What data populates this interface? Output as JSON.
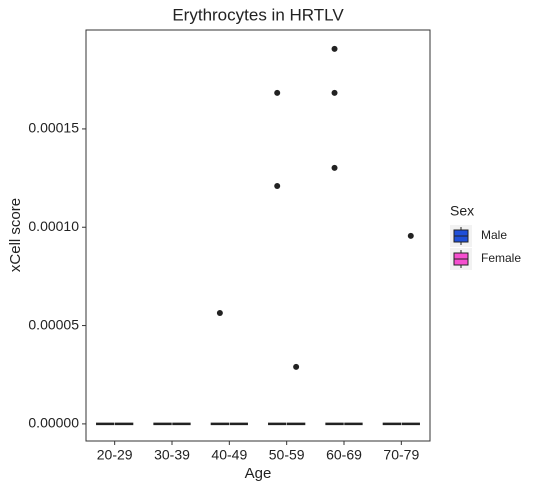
{
  "chart_data": {
    "type": "boxplot",
    "title": "Erythrocytes in HRTLV",
    "x_label": "Age",
    "y_label": "xCell score",
    "categories": [
      "20-29",
      "30-39",
      "40-49",
      "50-59",
      "60-69",
      "70-79"
    ],
    "legend_title": "Sex",
    "series": [
      {
        "name": "Male",
        "color": "#1f4fd8",
        "whisker_low": [
          0,
          0,
          0,
          0,
          0,
          0
        ],
        "q1": [
          0,
          0,
          0,
          0,
          0,
          0
        ],
        "median": [
          0,
          0,
          0,
          0,
          0,
          0
        ],
        "q3": [
          0,
          0,
          0,
          0,
          0,
          0
        ],
        "whisker_high": [
          0,
          0,
          0,
          0,
          0,
          0
        ],
        "outliers": [
          [],
          [],
          [
            5.64e-05
          ],
          [
            0.0001683,
            0.000121
          ],
          [
            0.0001907,
            0.0001683,
            0.0001302
          ],
          []
        ]
      },
      {
        "name": "Female",
        "color": "#f54fcf",
        "whisker_low": [
          0,
          0,
          0,
          0,
          0,
          0
        ],
        "q1": [
          0,
          0,
          0,
          0,
          0,
          0
        ],
        "median": [
          0,
          0,
          0,
          0,
          0,
          0
        ],
        "q3": [
          0,
          0,
          0,
          0,
          0,
          0
        ],
        "whisker_high": [
          0,
          0,
          0,
          0,
          0,
          0
        ],
        "outliers": [
          [],
          [],
          [],
          [
            2.9e-05
          ],
          [],
          [
            9.56e-05
          ]
        ]
      }
    ],
    "ylim": [
      -8.7e-06,
      0.0002003
    ],
    "yticks": [
      {
        "value": 0,
        "label": "0.00000"
      },
      {
        "value": 5e-05,
        "label": "0.00005"
      },
      {
        "value": 0.0001,
        "label": "0.00010"
      },
      {
        "value": 0.00015,
        "label": "0.00015"
      }
    ],
    "grid": false
  }
}
